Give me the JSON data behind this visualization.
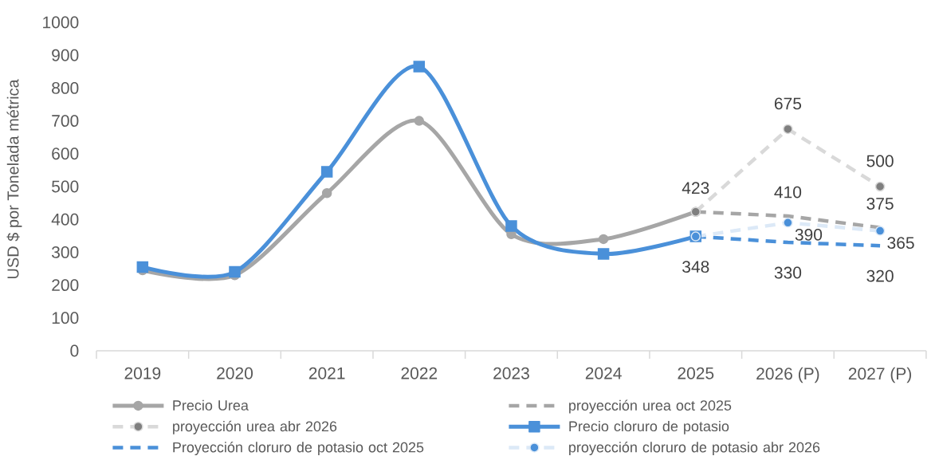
{
  "chart_data": {
    "type": "line",
    "ylabel": "USD $ por Tonelada métrica",
    "categories": [
      "2019",
      "2020",
      "2021",
      "2022",
      "2023",
      "2024",
      "2025",
      "2026 (P)",
      "2027 (P)"
    ],
    "ylim": [
      0,
      1000
    ],
    "yticks": [
      0,
      100,
      200,
      300,
      400,
      500,
      600,
      700,
      800,
      900,
      1000
    ],
    "legend": "bottom",
    "series": [
      {
        "name": "Precio Urea",
        "color": "#a6a6a6",
        "marker": "circle",
        "line_style": "solid",
        "values": [
          245,
          230,
          480,
          700,
          355,
          340,
          423,
          null,
          null
        ]
      },
      {
        "name": "proyección urea oct 2025",
        "color": "#a6a6a6",
        "marker": "none",
        "line_style": "dashed",
        "values": [
          null,
          null,
          null,
          null,
          null,
          null,
          423,
          410,
          375
        ],
        "value_labels": [
          null,
          null,
          null,
          null,
          null,
          null,
          "423",
          "410",
          "375"
        ]
      },
      {
        "name": "proyección urea abr 2026",
        "color": "#d9d9d9",
        "colors": [
          null,
          null,
          null,
          null,
          null,
          null,
          "#7f7f7f",
          "#7f7f7f",
          "#7f7f7f"
        ],
        "marker": "circle",
        "line_style": "dashed",
        "values": [
          null,
          null,
          null,
          null,
          null,
          null,
          423,
          675,
          500
        ],
        "value_labels": [
          null,
          null,
          null,
          null,
          null,
          null,
          null,
          "675",
          "500"
        ]
      },
      {
        "name": "Precio cloruro de potasio",
        "color": "#4a90d9",
        "marker": "square",
        "line_style": "solid",
        "values": [
          255,
          240,
          545,
          865,
          380,
          295,
          348,
          null,
          null
        ]
      },
      {
        "name": "Proyección cloruro de potasio oct 2025",
        "color": "#4a90d9",
        "marker": "none",
        "line_style": "dashed",
        "values": [
          null,
          null,
          null,
          null,
          null,
          null,
          348,
          330,
          320
        ],
        "value_labels": [
          null,
          null,
          null,
          null,
          null,
          null,
          "348",
          "330",
          "320"
        ]
      },
      {
        "name": "proyección cloruro de potasio abr 2026",
        "color": "#dce9f7",
        "colors": [
          null,
          null,
          null,
          null,
          null,
          null,
          "#4a90d9",
          "#4a90d9",
          "#4a90d9"
        ],
        "marker": "circle",
        "line_style": "dashed",
        "values": [
          null,
          null,
          null,
          null,
          null,
          null,
          348,
          390,
          365
        ],
        "value_labels": [
          null,
          null,
          null,
          null,
          null,
          null,
          null,
          "390",
          "365"
        ]
      }
    ]
  }
}
